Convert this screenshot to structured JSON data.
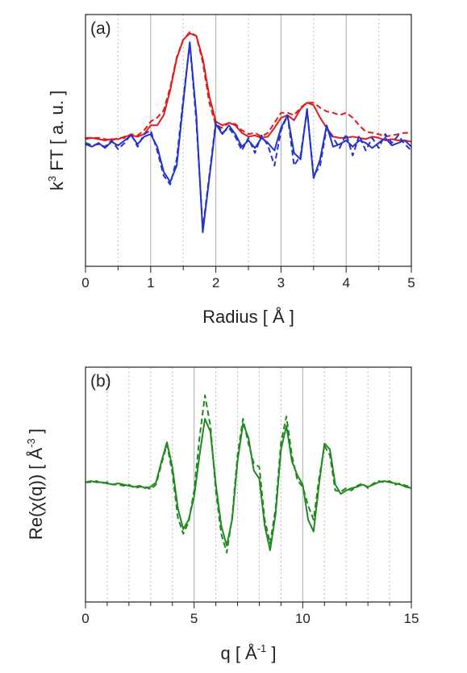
{
  "chart_data": [
    {
      "type": "line",
      "label": "(a)",
      "xlabel": "Radius [ Å ]",
      "ylabel": [
        {
          "text": "k"
        },
        {
          "text": "3",
          "sup": true
        },
        {
          "text": " FT [ a. u. ]"
        }
      ],
      "xlim": [
        0,
        5
      ],
      "xticks": [
        0,
        1,
        2,
        3,
        4,
        5
      ],
      "minor_xticks": [
        0.5,
        1.5,
        2.5,
        3.5,
        4.5
      ],
      "ylim": [
        -1,
        1
      ],
      "grid": true,
      "x": [
        0,
        0.1,
        0.2,
        0.3,
        0.4,
        0.5,
        0.6,
        0.7,
        0.8,
        0.9,
        1,
        1.1,
        1.2,
        1.3,
        1.4,
        1.5,
        1.6,
        1.7,
        1.8,
        1.9,
        2,
        2.1,
        2.2,
        2.3,
        2.4,
        2.5,
        2.6,
        2.7,
        2.8,
        2.9,
        3,
        3.1,
        3.2,
        3.3,
        3.4,
        3.5,
        3.6,
        3.7,
        3.8,
        3.9,
        4,
        4.1,
        4.2,
        4.3,
        4.4,
        4.5,
        4.6,
        4.7,
        4.8,
        4.9,
        5
      ],
      "series": [
        {
          "color": "#e31a1c",
          "dash": false,
          "values": [
            0.02,
            0.02,
            0.01,
            0,
            0.01,
            0.01,
            0.03,
            0.04,
            0.03,
            0.05,
            0.12,
            0.12,
            0.2,
            0.4,
            0.65,
            0.8,
            0.85,
            0.83,
            0.65,
            0.35,
            0.15,
            0.12,
            0.14,
            0.12,
            0.06,
            0.03,
            0.04,
            0.02,
            0.03,
            0.1,
            0.18,
            0.2,
            0.16,
            0.25,
            0.3,
            0.28,
            0.18,
            0.1,
            0.03,
            0.02,
            0.02,
            0.03,
            0.02,
            0.01,
            0.03,
            0.02,
            0,
            0.01,
            0,
            0,
            -0.01
          ]
        },
        {
          "color": "#e31a1c",
          "dash": true,
          "values": [
            0.01,
            0.02,
            0.02,
            0.01,
            0,
            0.02,
            0.02,
            0.05,
            0.04,
            0.08,
            0.15,
            0.18,
            0.24,
            0.42,
            0.66,
            0.8,
            0.86,
            0.83,
            0.62,
            0.3,
            0.12,
            0.1,
            0.14,
            0.13,
            0.08,
            0.05,
            0.06,
            0.03,
            0.06,
            0.14,
            0.22,
            0.22,
            0.2,
            0.26,
            0.3,
            0.3,
            0.26,
            0.23,
            0.22,
            0.2,
            0.22,
            0.18,
            0.12,
            0.07,
            0.06,
            0.05,
            0.03,
            0.04,
            0.05,
            0.06,
            0.06
          ]
        },
        {
          "color": "#2233cc",
          "dash": false,
          "values": [
            -0.03,
            -0.05,
            -0.02,
            -0.06,
            -0.01,
            -0.04,
            0,
            0.04,
            -0.03,
            0.03,
            0.05,
            -0.05,
            -0.25,
            -0.33,
            -0.2,
            0.3,
            0.78,
            0.2,
            -0.73,
            -0.3,
            0.13,
            0.05,
            0.12,
            0.05,
            -0.05,
            0,
            -0.06,
            0.02,
            -0.02,
            -0.08,
            0.1,
            0.2,
            -0.1,
            -0.15,
            0.25,
            -0.3,
            -0.15,
            0.12,
            -0.05,
            -0.03,
            0,
            -0.05,
            0,
            -0.02,
            -0.06,
            -0.02,
            0.02,
            -0.04,
            -0.02,
            0,
            -0.05
          ]
        },
        {
          "color": "#2233cc",
          "dash": true,
          "values": [
            -0.02,
            -0.04,
            -0.03,
            -0.05,
            0,
            -0.07,
            -0.02,
            0.05,
            -0.05,
            0.05,
            0.08,
            -0.08,
            -0.28,
            -0.35,
            -0.15,
            0.33,
            0.77,
            0.15,
            -0.7,
            -0.28,
            0.15,
            0.06,
            0.1,
            0.03,
            -0.08,
            0.02,
            -0.1,
            0.04,
            -0.04,
            -0.2,
            0.08,
            0.2,
            -0.2,
            -0.12,
            0.24,
            -0.28,
            -0.2,
            0.1,
            0.02,
            -0.06,
            0.05,
            -0.12,
            0.04,
            -0.08,
            0.02,
            -0.06,
            0.05,
            -0.02,
            0.04,
            -0.03,
            -0.08
          ]
        }
      ]
    },
    {
      "type": "line",
      "label": "(b)",
      "xlabel": [
        {
          "text": "q [ Å"
        },
        {
          "text": "-1",
          "sup": true
        },
        {
          "text": " ]"
        }
      ],
      "ylabel": [
        {
          "text": "Re(χ(q)) [ Å"
        },
        {
          "text": "-3",
          "sup": true
        },
        {
          "text": " ]"
        }
      ],
      "xlim": [
        0,
        15
      ],
      "xticks": [
        0,
        5,
        10,
        15
      ],
      "minor_xticks": [
        1,
        2,
        3,
        4,
        6,
        7,
        8,
        9,
        11,
        12,
        13,
        14
      ],
      "ylim": [
        -1,
        1
      ],
      "grid": true,
      "x": [
        0,
        0.25,
        0.5,
        0.75,
        1,
        1.25,
        1.5,
        1.75,
        2,
        2.25,
        2.5,
        2.75,
        3,
        3.25,
        3.5,
        3.75,
        4,
        4.25,
        4.5,
        4.75,
        5,
        5.25,
        5.5,
        5.75,
        6,
        6.25,
        6.5,
        6.75,
        7,
        7.25,
        7.5,
        7.75,
        8,
        8.25,
        8.5,
        8.75,
        9,
        9.25,
        9.5,
        9.75,
        10,
        10.25,
        10.5,
        10.75,
        11,
        11.25,
        11.5,
        11.75,
        12,
        12.25,
        12.5,
        12.75,
        13,
        13.25,
        13.5,
        13.75,
        14,
        14.25,
        14.5,
        14.75,
        15
      ],
      "series": [
        {
          "color": "#1f8a1f",
          "dash": false,
          "values": [
            0.02,
            0.03,
            0.02,
            0.02,
            0.01,
            0,
            0.01,
            0,
            -0.01,
            -0.02,
            -0.01,
            -0.03,
            -0.02,
            0.02,
            0.2,
            0.36,
            0.15,
            -0.2,
            -0.38,
            -0.3,
            -0.1,
            0.25,
            0.56,
            0.45,
            0,
            -0.35,
            -0.52,
            -0.3,
            0.2,
            0.52,
            0.4,
            0.12,
            0.05,
            -0.35,
            -0.56,
            -0.25,
            0.3,
            0.5,
            0.2,
            0.08,
            0,
            -0.3,
            -0.4,
            0,
            0.35,
            0.3,
            0,
            -0.08,
            -0.05,
            -0.03,
            -0.02,
            0,
            -0.02,
            0,
            0.02,
            0.03,
            0.02,
            0.01,
            0,
            -0.02,
            -0.03
          ]
        },
        {
          "color": "#1f8a1f",
          "dash": true,
          "values": [
            0.02,
            0.02,
            0.03,
            0.01,
            0.02,
            0,
            0,
            -0.01,
            0,
            -0.03,
            -0.02,
            -0.02,
            -0.04,
            0,
            0.18,
            0.34,
            0.1,
            -0.28,
            -0.42,
            -0.32,
            -0.05,
            0.4,
            0.76,
            0.5,
            -0.05,
            -0.42,
            -0.58,
            -0.28,
            0.25,
            0.56,
            0.35,
            0.18,
            0.15,
            -0.3,
            -0.5,
            -0.2,
            0.36,
            0.58,
            0.25,
            0.04,
            -0.02,
            -0.18,
            -0.3,
            0.05,
            0.33,
            0.25,
            -0.05,
            -0.06,
            -0.03,
            -0.05,
            -0.01,
            0.01,
            -0.03,
            0.01,
            0.03,
            0.02,
            0.03,
            0,
            0.01,
            -0.01,
            -0.02
          ]
        }
      ]
    }
  ]
}
